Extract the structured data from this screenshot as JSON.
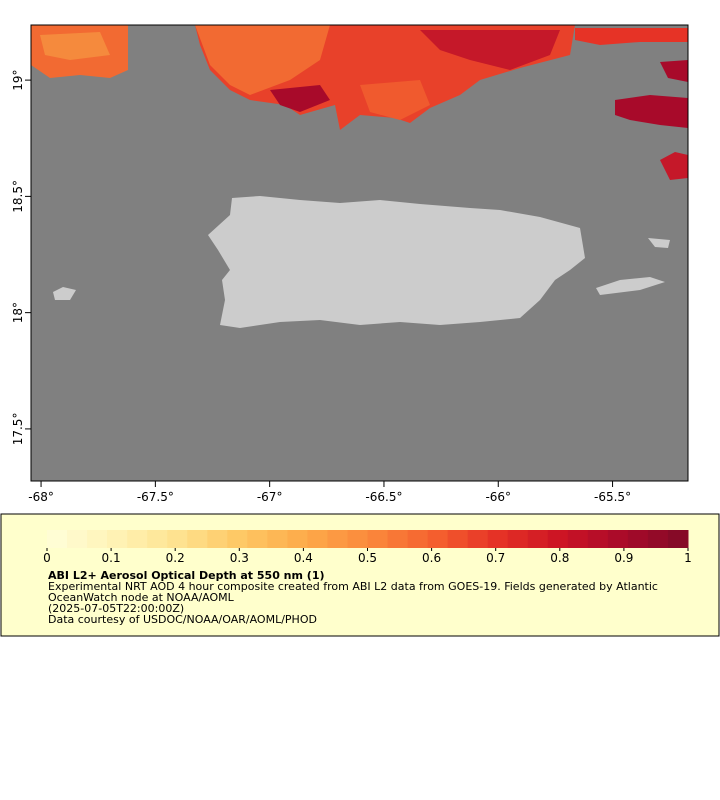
{
  "map": {
    "xlim": [
      -68.044,
      -65.17
    ],
    "ylim": [
      17.276,
      19.237
    ],
    "xticks": [
      {
        "value": -68,
        "label": "-68°"
      },
      {
        "value": -67.5,
        "label": "-67.5°"
      },
      {
        "value": -67,
        "label": "-67°"
      },
      {
        "value": -66.5,
        "label": "-66.5°"
      },
      {
        "value": -66,
        "label": "-66°"
      },
      {
        "value": -65.5,
        "label": "-65.5°"
      }
    ],
    "yticks": [
      {
        "value": 17.5,
        "label": "17.5°"
      },
      {
        "value": 18,
        "label": "18°"
      },
      {
        "value": 18.5,
        "label": "18.5°"
      },
      {
        "value": 19,
        "label": "19°"
      }
    ],
    "ocean_color": "#808080",
    "land_color": "#cccccc"
  },
  "colorbar": {
    "lim": [
      0,
      1
    ],
    "ticks": [
      0,
      0.1,
      0.2,
      0.3,
      0.4,
      0.5,
      0.6,
      0.7,
      0.8,
      0.9,
      1
    ],
    "colors": [
      "#ffffd9",
      "#fff3b8",
      "#fee391",
      "#fec865",
      "#fdab4a",
      "#fb8a3c",
      "#f5622f",
      "#e63326",
      "#cc1424",
      "#a80a2a",
      "#800a26"
    ]
  },
  "legend": {
    "title": "ABI L2+ Aerosol Optical Depth at 550 nm (1)",
    "lines": [
      "Experimental NRT AOD 4 hour composite created from ABI L2 data from GOES-19. Fields generated by Atlantic OceanWatch node at NOAA/AOML",
      "(2025-07-05T22:00:00Z)",
      "Data courtesy of USDOC/NOAA/OAR/AOML/PHOD"
    ]
  }
}
